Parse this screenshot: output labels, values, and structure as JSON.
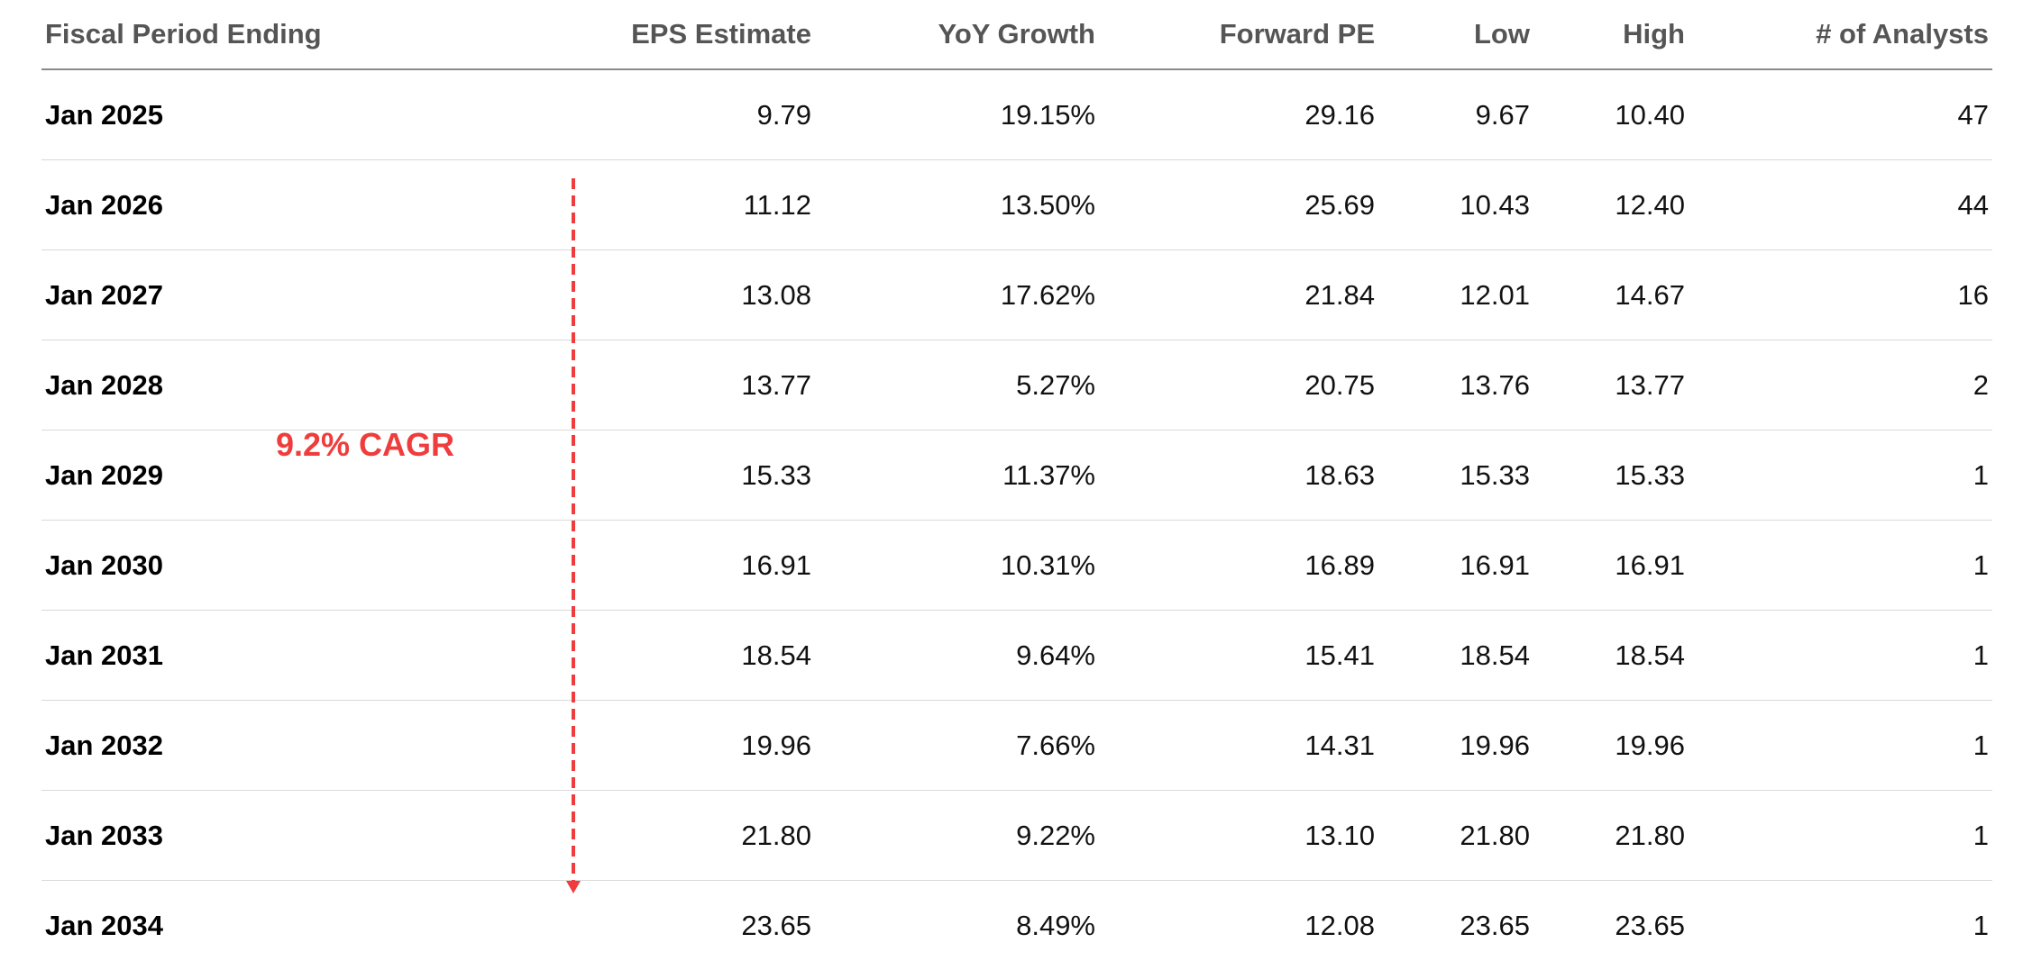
{
  "table": {
    "headers": {
      "period": "Fiscal Period Ending",
      "eps": "EPS Estimate",
      "yoy": "YoY Growth",
      "pe": "Forward PE",
      "low": "Low",
      "high": "High",
      "analysts": "# of Analysts"
    },
    "rows": [
      {
        "period": "Jan 2025",
        "eps": "9.79",
        "yoy": "19.15%",
        "pe": "29.16",
        "low": "9.67",
        "high": "10.40",
        "analysts": "47"
      },
      {
        "period": "Jan 2026",
        "eps": "11.12",
        "yoy": "13.50%",
        "pe": "25.69",
        "low": "10.43",
        "high": "12.40",
        "analysts": "44"
      },
      {
        "period": "Jan 2027",
        "eps": "13.08",
        "yoy": "17.62%",
        "pe": "21.84",
        "low": "12.01",
        "high": "14.67",
        "analysts": "16"
      },
      {
        "period": "Jan 2028",
        "eps": "13.77",
        "yoy": "5.27%",
        "pe": "20.75",
        "low": "13.76",
        "high": "13.77",
        "analysts": "2"
      },
      {
        "period": "Jan 2029",
        "eps": "15.33",
        "yoy": "11.37%",
        "pe": "18.63",
        "low": "15.33",
        "high": "15.33",
        "analysts": "1"
      },
      {
        "period": "Jan 2030",
        "eps": "16.91",
        "yoy": "10.31%",
        "pe": "16.89",
        "low": "16.91",
        "high": "16.91",
        "analysts": "1"
      },
      {
        "period": "Jan 2031",
        "eps": "18.54",
        "yoy": "9.64%",
        "pe": "15.41",
        "low": "18.54",
        "high": "18.54",
        "analysts": "1"
      },
      {
        "period": "Jan 2032",
        "eps": "19.96",
        "yoy": "7.66%",
        "pe": "14.31",
        "low": "19.96",
        "high": "19.96",
        "analysts": "1"
      },
      {
        "period": "Jan 2033",
        "eps": "21.80",
        "yoy": "9.22%",
        "pe": "13.10",
        "low": "21.80",
        "high": "21.80",
        "analysts": "1"
      },
      {
        "period": "Jan 2034",
        "eps": "23.65",
        "yoy": "8.49%",
        "pe": "12.08",
        "low": "23.65",
        "high": "23.65",
        "analysts": "1"
      }
    ]
  },
  "annotation": {
    "label": "9.2% CAGR",
    "color": "#ef3d3d"
  }
}
